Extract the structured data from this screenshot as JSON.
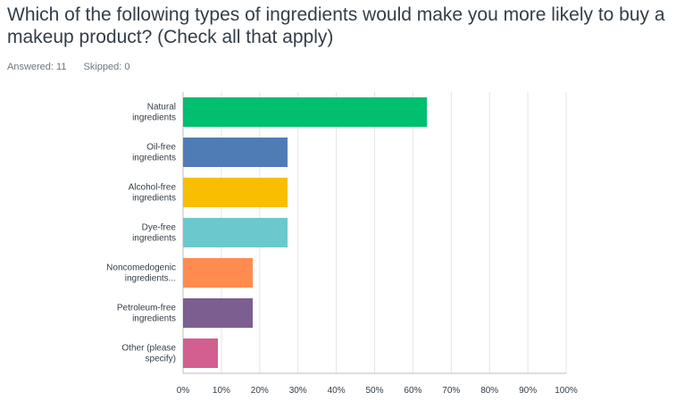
{
  "question": {
    "title": "Which of the following types of ingredients would make you more likely to buy a makeup product? (Check all that apply)",
    "answered": "Answered: 11",
    "skipped": "Skipped: 0"
  },
  "chart_data": {
    "type": "bar",
    "orientation": "horizontal",
    "categories": [
      [
        "Natural",
        "ingredients"
      ],
      [
        "Oil-free",
        "ingredients"
      ],
      [
        "Alcohol-free",
        "ingredients"
      ],
      [
        "Dye-free",
        "ingredients"
      ],
      [
        "Noncomedogenic",
        "ingredients..."
      ],
      [
        "Petroleum-free",
        "ingredients"
      ],
      [
        "Other (please",
        "specify)"
      ]
    ],
    "values": [
      63.64,
      27.27,
      27.27,
      27.27,
      18.18,
      18.18,
      9.09
    ],
    "colors": [
      "#00bf6f",
      "#507cb6",
      "#f9be00",
      "#6bc8cd",
      "#ff8b4f",
      "#7d5e90",
      "#d25f90"
    ],
    "xlim": [
      0,
      100
    ],
    "ticks": [
      "0%",
      "10%",
      "20%",
      "30%",
      "40%",
      "50%",
      "60%",
      "70%",
      "80%",
      "90%",
      "100%"
    ],
    "grid": true,
    "gridColor": "#e3e5e6",
    "axisColor": "#b8bec2"
  }
}
